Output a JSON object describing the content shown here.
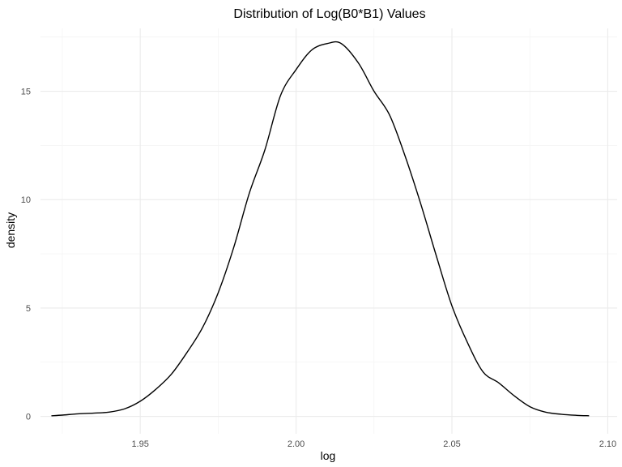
{
  "chart_data": {
    "type": "line",
    "title": "Distribution of Log(B0*B1) Values",
    "xlabel": "log",
    "ylabel": "density",
    "xlim": [
      1.918,
      2.103
    ],
    "ylim": [
      -0.8,
      17.9
    ],
    "x_ticks": [
      1.95,
      2.0,
      2.05,
      2.1
    ],
    "x_tick_labels": [
      "1.95",
      "2.00",
      "2.05",
      "2.10"
    ],
    "y_ticks": [
      0,
      5,
      10,
      15
    ],
    "y_tick_labels": [
      "0",
      "5",
      "10",
      "15"
    ],
    "grid": true,
    "legend": "none",
    "series": [
      {
        "x": [
          1.9215,
          1.925,
          1.93,
          1.935,
          1.94,
          1.945,
          1.95,
          1.955,
          1.96,
          1.965,
          1.97,
          1.975,
          1.98,
          1.985,
          1.99,
          1.995,
          2.0,
          2.005,
          2.01,
          2.0145,
          2.02,
          2.025,
          2.03,
          2.035,
          2.04,
          2.045,
          2.05,
          2.055,
          2.06,
          2.065,
          2.07,
          2.075,
          2.08,
          2.085,
          2.09,
          2.094
        ],
        "y": [
          0.03,
          0.06,
          0.12,
          0.15,
          0.2,
          0.35,
          0.7,
          1.25,
          1.95,
          2.95,
          4.1,
          5.7,
          7.8,
          10.3,
          12.3,
          14.8,
          16.0,
          16.9,
          17.2,
          17.2,
          16.3,
          15.0,
          13.9,
          12.0,
          9.8,
          7.4,
          5.1,
          3.4,
          2.05,
          1.55,
          0.95,
          0.45,
          0.2,
          0.1,
          0.05,
          0.03
        ],
        "color": "#000000"
      }
    ]
  }
}
